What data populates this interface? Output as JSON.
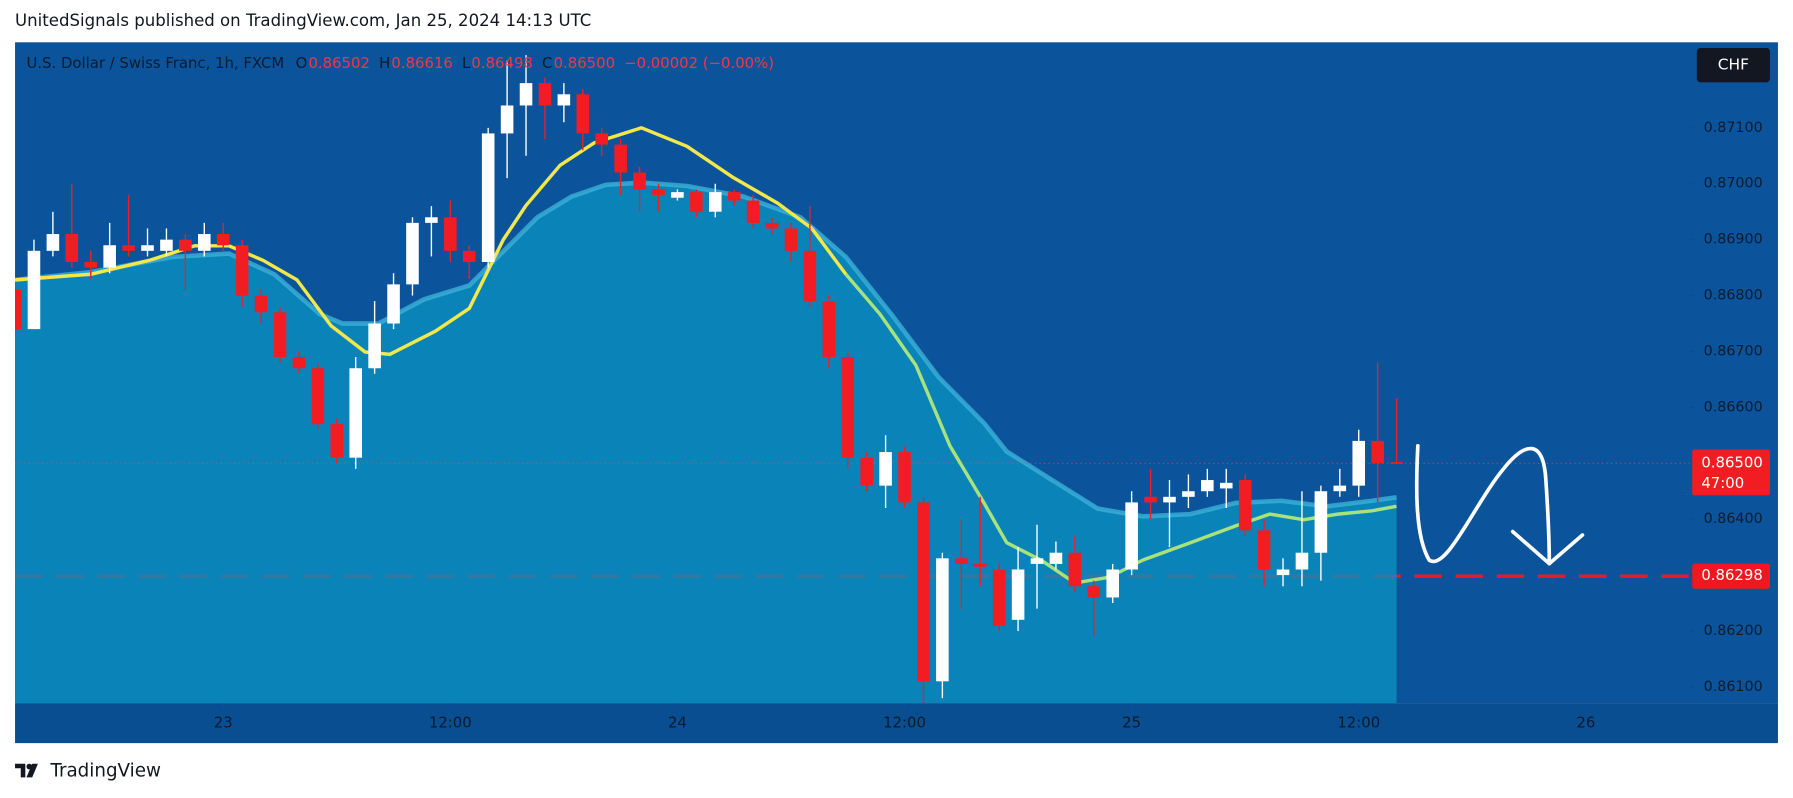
{
  "header": {
    "title": "UnitedSignals published on TradingView.com, Jan 25, 2024 14:13 UTC"
  },
  "footer": {
    "brand": "TradingView"
  },
  "chart_data": {
    "type": "candlestick",
    "symbol": "U.S. Dollar / Swiss Franc, 1h, FXCM",
    "ohlc_letters": [
      "O",
      "H",
      "L",
      "C"
    ],
    "change": "−0.00002 (−0.00%)",
    "currency": "CHF",
    "close_label": "0.86500",
    "countdown": "47:00",
    "hline": 0.86298,
    "up_color": "#ffffff",
    "down_color": "#f21d22",
    "background": "#0b549b",
    "axis_band": "#0a4e92",
    "area_color": "#0a8ec0",
    "area_edge_color": "#3cb0d8",
    "hline_color": "#f0181f",
    "grid": false,
    "xlim": [
      0,
      88.5
    ],
    "xticks": [
      {
        "value": 11,
        "label": "23"
      },
      {
        "value": 23,
        "label": "12:00"
      },
      {
        "value": 35,
        "label": "24"
      },
      {
        "value": 47,
        "label": "12:00"
      },
      {
        "value": 59,
        "label": "25"
      },
      {
        "value": 71,
        "label": "12:00"
      },
      {
        "value": 83,
        "label": "26"
      }
    ],
    "ylim": [
      0.86071,
      0.87253
    ],
    "yticks": [
      {
        "value": 0.861,
        "label": "0.86100"
      },
      {
        "value": 0.862,
        "label": "0.86200"
      },
      {
        "value": 0.863,
        "label": "0.86300"
      },
      {
        "value": 0.864,
        "label": "0.86400"
      },
      {
        "value": 0.865,
        "label": "0.86500"
      },
      {
        "value": 0.866,
        "label": "0.86600"
      },
      {
        "value": 0.867,
        "label": "0.86700"
      },
      {
        "value": 0.868,
        "label": "0.86800"
      },
      {
        "value": 0.869,
        "label": "0.86900"
      },
      {
        "value": 0.87,
        "label": "0.87000"
      },
      {
        "value": 0.871,
        "label": "0.87100"
      }
    ],
    "open": [
      0.8681,
      0.8674,
      0.8688,
      0.8691,
      0.8686,
      0.8685,
      0.8689,
      0.8688,
      0.8688,
      0.869,
      0.8688,
      0.8691,
      0.8689,
      0.868,
      0.8677,
      0.8669,
      0.8667,
      0.8657,
      0.8651,
      0.8667,
      0.8675,
      0.8682,
      0.8693,
      0.8694,
      0.8688,
      0.8686,
      0.8709,
      0.8714,
      0.8718,
      0.8714,
      0.8716,
      0.8709,
      0.8707,
      0.8702,
      0.8699,
      0.86975,
      0.86985,
      0.8695,
      0.86985,
      0.8697,
      0.8693,
      0.8692,
      0.8688,
      0.8679,
      0.8669,
      0.8651,
      0.8646,
      0.8652,
      0.8643,
      0.8611,
      0.8633,
      0.8632,
      0.8631,
      0.8622,
      0.8632,
      0.8632,
      0.8634,
      0.8628,
      0.8626,
      0.8631,
      0.8644,
      0.8643,
      0.8644,
      0.8645,
      0.86455,
      0.8647,
      0.8638,
      0.863,
      0.8631,
      0.8634,
      0.8645,
      0.8646,
      0.8654,
      0.86502
    ],
    "high": [
      0.8682,
      0.869,
      0.8695,
      0.87,
      0.8688,
      0.8693,
      0.8698,
      0.8692,
      0.8692,
      0.8691,
      0.8693,
      0.8693,
      0.869,
      0.8681,
      0.8678,
      0.867,
      0.8668,
      0.8658,
      0.8669,
      0.8679,
      0.8684,
      0.8694,
      0.8696,
      0.8697,
      0.8689,
      0.871,
      0.8722,
      0.8723,
      0.8719,
      0.8718,
      0.8717,
      0.871,
      0.8708,
      0.8703,
      0.87,
      0.8699,
      0.8699,
      0.87,
      0.8699,
      0.8698,
      0.8694,
      0.8693,
      0.8696,
      0.868,
      0.867,
      0.8652,
      0.8655,
      0.8653,
      0.8644,
      0.8634,
      0.864,
      0.8644,
      0.8632,
      0.8635,
      0.8639,
      0.8636,
      0.8637,
      0.8629,
      0.8632,
      0.8645,
      0.8649,
      0.8647,
      0.8648,
      0.8649,
      0.8649,
      0.8648,
      0.864,
      0.8633,
      0.8645,
      0.8646,
      0.8649,
      0.8656,
      0.8668,
      0.86616
    ],
    "low": [
      0.8673,
      0.8674,
      0.8687,
      0.8685,
      0.8683,
      0.8684,
      0.8687,
      0.8687,
      0.8687,
      0.8681,
      0.8687,
      0.8688,
      0.8678,
      0.8675,
      0.8668,
      0.8666,
      0.8656,
      0.865,
      0.8649,
      0.8666,
      0.8674,
      0.868,
      0.8687,
      0.8686,
      0.8683,
      0.8685,
      0.8701,
      0.8705,
      0.8708,
      0.8711,
      0.8706,
      0.8705,
      0.8698,
      0.8695,
      0.8695,
      0.8697,
      0.8694,
      0.8694,
      0.8696,
      0.8692,
      0.8691,
      0.8686,
      0.8678,
      0.8667,
      0.8649,
      0.8645,
      0.8642,
      0.8642,
      0.8607,
      0.8608,
      0.8624,
      0.8628,
      0.862,
      0.862,
      0.8624,
      0.8631,
      0.8627,
      0.8619,
      0.8625,
      0.863,
      0.864,
      0.8635,
      0.8642,
      0.8644,
      0.8642,
      0.8637,
      0.8628,
      0.8628,
      0.8628,
      0.8629,
      0.8644,
      0.8644,
      0.8643,
      0.86498
    ],
    "close": [
      0.8674,
      0.8688,
      0.8691,
      0.8686,
      0.8685,
      0.8689,
      0.8688,
      0.8689,
      0.869,
      0.8688,
      0.8691,
      0.8689,
      0.868,
      0.8677,
      0.8669,
      0.8667,
      0.8657,
      0.8651,
      0.8667,
      0.8675,
      0.8682,
      0.8693,
      0.8694,
      0.8688,
      0.8686,
      0.8709,
      0.8714,
      0.8718,
      0.8714,
      0.8716,
      0.8709,
      0.8707,
      0.8702,
      0.8699,
      0.8698,
      0.86985,
      0.8695,
      0.86985,
      0.8697,
      0.8693,
      0.8692,
      0.8688,
      0.8679,
      0.8669,
      0.8651,
      0.8646,
      0.8652,
      0.8643,
      0.8611,
      0.8633,
      0.8632,
      0.86315,
      0.8621,
      0.8631,
      0.8633,
      0.8634,
      0.8628,
      0.8626,
      0.8631,
      0.8643,
      0.8643,
      0.8644,
      0.8645,
      0.8647,
      0.86465,
      0.8638,
      0.8631,
      0.8631,
      0.8634,
      0.8645,
      0.8646,
      0.8654,
      0.865,
      0.865
    ],
    "area": {
      "x": [
        0,
        4,
        8.3,
        11.3,
        13.7,
        16.1,
        17.3,
        19.2,
        21.6,
        24,
        25.8,
        27.6,
        29.4,
        31.2,
        33.1,
        35.5,
        38.5,
        41.5,
        43.9,
        46.3,
        48.8,
        51.2,
        52.4,
        54.8,
        57.2,
        59.6,
        62.1,
        64.5,
        66.9,
        69.3,
        71.7,
        73
      ],
      "values": [
        0.86828,
        0.86842,
        0.86869,
        0.86875,
        0.86838,
        0.86767,
        0.8675,
        0.8675,
        0.86793,
        0.86818,
        0.86879,
        0.8694,
        0.86977,
        0.86998,
        0.87002,
        0.86996,
        0.86977,
        0.8694,
        0.86869,
        0.86767,
        0.86654,
        0.86572,
        0.86521,
        0.8647,
        0.86419,
        0.86405,
        0.86409,
        0.86429,
        0.86433,
        0.86423,
        0.86433,
        0.86439
      ]
    },
    "overlays": [
      {
        "color": "#f3e84a",
        "x": [
          0,
          4,
          7.1,
          9.5,
          11.3,
          13.1,
          14.9,
          16.7,
          18.5,
          19.8,
          22.2,
          24,
          25.8,
          27,
          28.8,
          30.6,
          33.1,
          35.5,
          37.9,
          40.3,
          42.1,
          43.9
        ],
        "values": [
          0.86828,
          0.86838,
          0.86863,
          0.86889,
          0.86889,
          0.86863,
          0.86828,
          0.86746,
          0.86699,
          0.86695,
          0.86736,
          0.86777,
          0.869,
          0.86961,
          0.87033,
          0.87073,
          0.871,
          0.87067,
          0.87012,
          0.86965,
          0.8692,
          0.86838
        ]
      },
      {
        "color": "#a8e27c",
        "x": [
          43.9,
          45.7,
          47.6,
          49.4,
          51.2,
          52.4,
          54.2,
          56,
          57.8,
          59.6,
          62.1,
          64.5,
          66.3,
          68.1,
          69.9,
          71.7,
          73
        ],
        "values": [
          0.86838,
          0.86767,
          0.86675,
          0.86531,
          0.86429,
          0.86358,
          0.86327,
          0.86286,
          0.86296,
          0.86327,
          0.86358,
          0.86388,
          0.86409,
          0.86399,
          0.86409,
          0.86415,
          0.86423
        ]
      }
    ]
  }
}
